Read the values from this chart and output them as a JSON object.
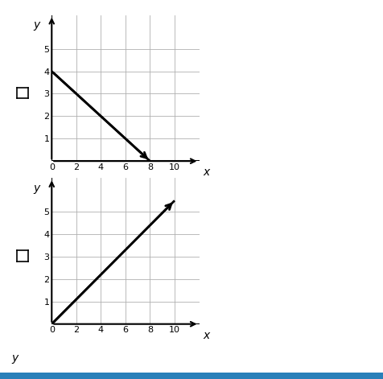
{
  "graph1": {
    "x_start": 0,
    "y_start": 4,
    "x_end": 8,
    "y_end": 0,
    "xlim": [
      0,
      12
    ],
    "ylim": [
      0,
      6.5
    ],
    "xticks": [
      0,
      2,
      4,
      6,
      8,
      10
    ],
    "yticks": [
      1,
      2,
      3,
      4,
      5
    ],
    "xlabel": "x",
    "ylabel": "y"
  },
  "graph2": {
    "x_start": 0,
    "y_start": 0,
    "x_end": 10,
    "y_end": 5.5,
    "xlim": [
      0,
      12
    ],
    "ylim": [
      0,
      6.5
    ],
    "xticks": [
      0,
      2,
      4,
      6,
      8,
      10
    ],
    "yticks": [
      1,
      2,
      3,
      4,
      5
    ],
    "xlabel": "x",
    "ylabel": "y"
  },
  "line_color": "black",
  "line_width": 2.0,
  "grid_color": "#b0b0b0",
  "grid_linewidth": 0.6,
  "axis_color": "black",
  "axis_linewidth": 1.5,
  "tick_fontsize": 8,
  "label_fontsize": 10,
  "figure_bg": "white",
  "graph_bg": "white",
  "bottom_y_label": "y",
  "bottom_bar_color": "#2980b9"
}
